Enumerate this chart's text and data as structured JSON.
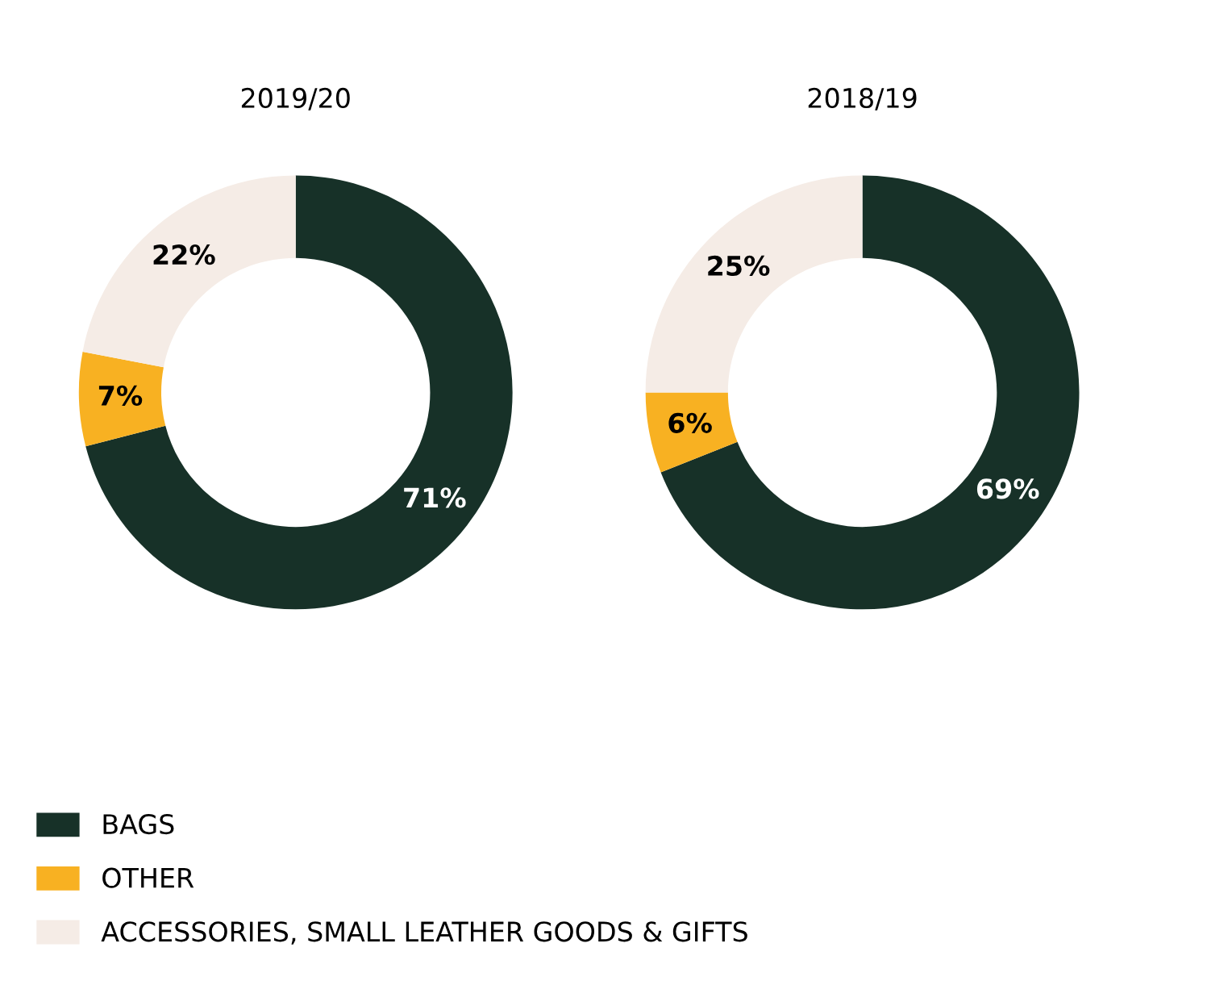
{
  "chart_data": [
    {
      "type": "donut",
      "title": "2019/20",
      "categories": [
        "BAGS",
        "OTHER",
        "ACCESSORIES, SMALL LEATHER GOODS & GIFTS"
      ],
      "values": [
        71,
        7,
        22
      ],
      "colors": [
        "#173128",
        "#f8b122",
        "#f5ece6"
      ],
      "value_labels": [
        "71%",
        "7%",
        "22%"
      ],
      "legend": "bottom"
    },
    {
      "type": "donut",
      "title": "2018/19",
      "categories": [
        null,
        null,
        null
      ],
      "values": [
        69,
        6,
        25
      ],
      "colors": [
        "#173128",
        "#f8b122",
        "#f5ece6"
      ],
      "value_labels": [
        "69%",
        "6%",
        "25%"
      ]
    }
  ]
}
